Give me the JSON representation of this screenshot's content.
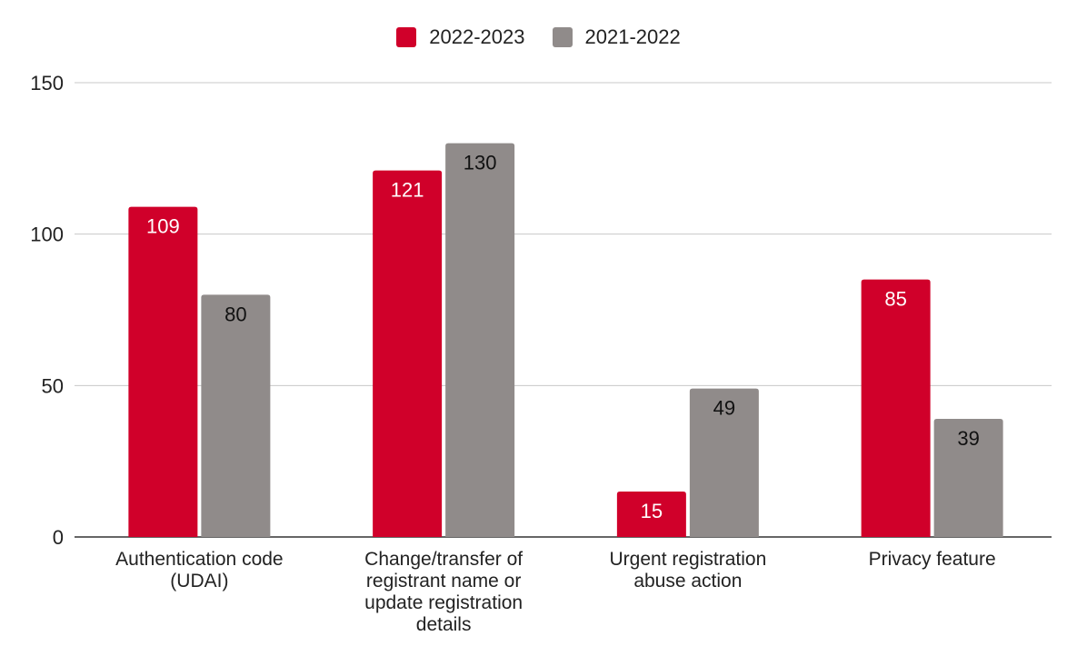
{
  "chart_data": {
    "type": "bar",
    "title": "",
    "xlabel": "",
    "ylabel": "",
    "ylim": [
      0,
      150
    ],
    "yticks": [
      0,
      50,
      100,
      150
    ],
    "categories": [
      [
        "Authentication code",
        "(UDAI)"
      ],
      [
        "Change/transfer of",
        "registrant name or",
        "update registration",
        "details"
      ],
      [
        "Urgent registration",
        "abuse action"
      ],
      [
        "Privacy feature"
      ]
    ],
    "series": [
      {
        "name": "2022-2023",
        "color": "#d0002a",
        "label_color": "#ffffff",
        "values": [
          109,
          121,
          15,
          85
        ]
      },
      {
        "name": "2021-2022",
        "color": "#908b8a",
        "label_color": "#111111",
        "values": [
          80,
          130,
          49,
          39
        ]
      }
    ],
    "legend": "top-center",
    "grid": true
  }
}
